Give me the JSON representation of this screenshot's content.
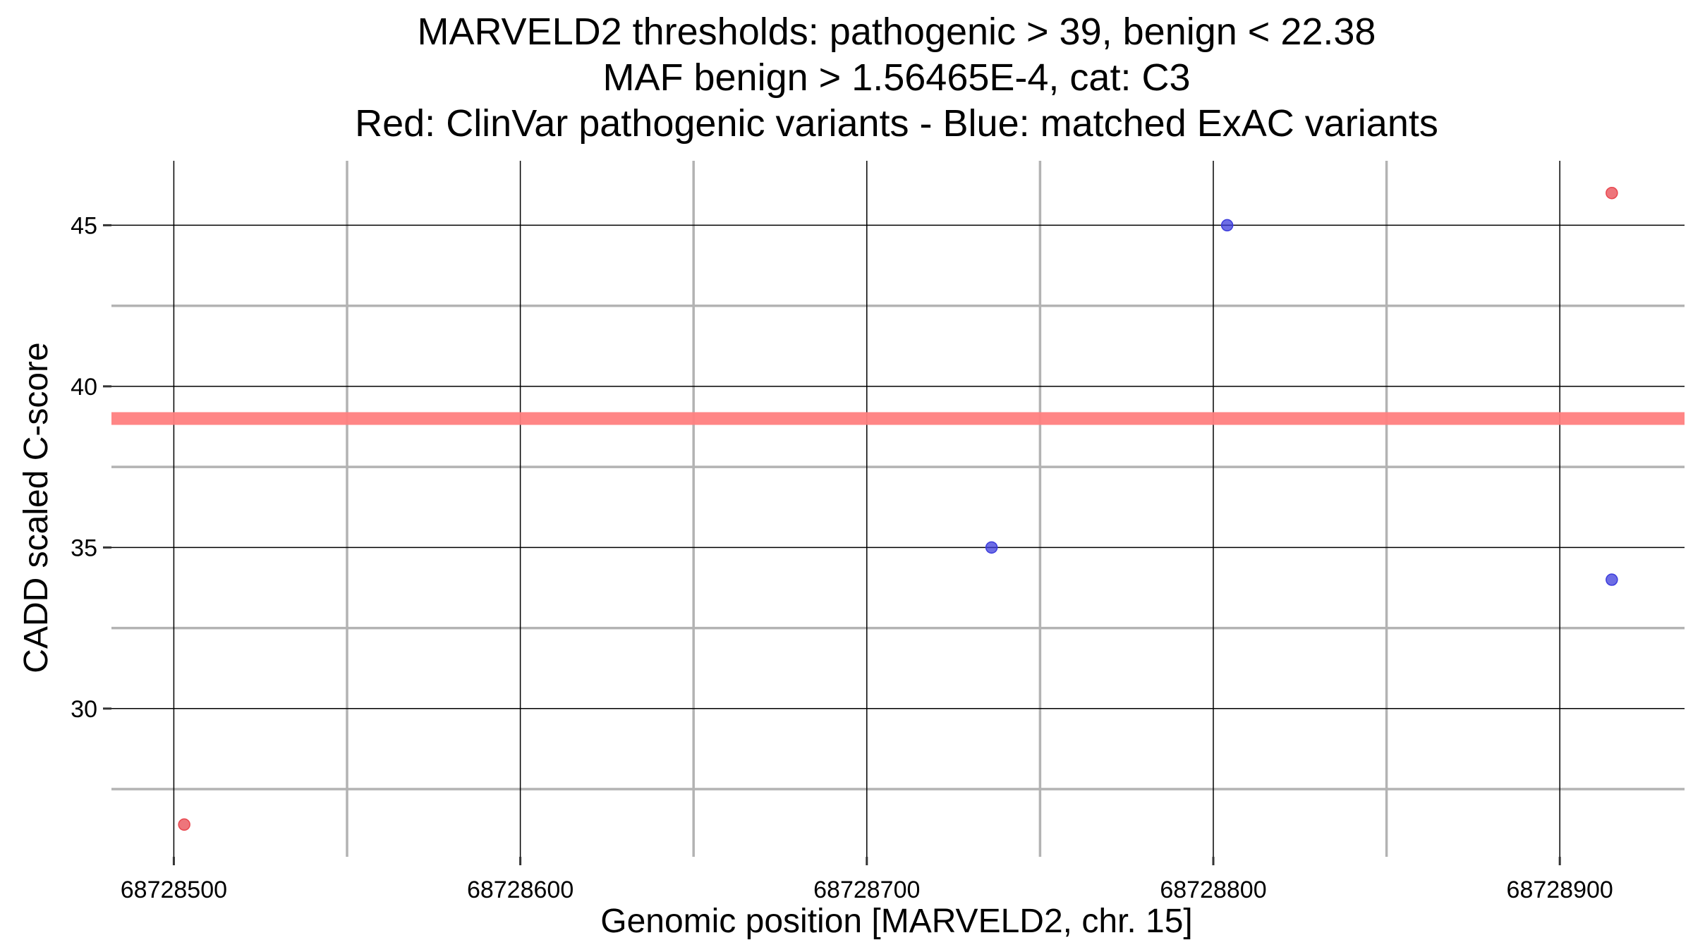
{
  "chart_data": {
    "type": "scatter",
    "title_lines": [
      "MARVELD2 thresholds: pathogenic > 39, benign < 22.38",
      "MAF benign > 1.56465E-4, cat: C3",
      "Red: ClinVar pathogenic variants - Blue: matched ExAC variants"
    ],
    "xlabel": "Genomic position [MARVELD2, chr. 15]",
    "ylabel": "CADD scaled C-score",
    "xlim": [
      68728482,
      68728936
    ],
    "ylim": [
      25.4,
      47.0
    ],
    "x_major_ticks": [
      68728500,
      68728600,
      68728700,
      68728800,
      68728900
    ],
    "x_major_tick_labels": [
      "68728500",
      "68728600",
      "68728700",
      "68728800",
      "68728900"
    ],
    "x_minor_ticks": [
      68728550,
      68728650,
      68728750,
      68728850
    ],
    "y_major_ticks": [
      30,
      35,
      40,
      45
    ],
    "y_major_tick_labels": [
      "30",
      "35",
      "40",
      "45"
    ],
    "y_minor_ticks": [
      27.5,
      32.5,
      37.5,
      42.5
    ],
    "threshold_line": {
      "y": 39,
      "color": "#ff7f7f"
    },
    "series": [
      {
        "color": "#e8474f",
        "points": [
          {
            "x": 68728503,
            "y": 26.4
          },
          {
            "x": 68728915,
            "y": 46
          }
        ]
      },
      {
        "color": "#3c3cdc",
        "points": [
          {
            "x": 68728736,
            "y": 35
          },
          {
            "x": 68728804,
            "y": 45
          },
          {
            "x": 68728915,
            "y": 34
          }
        ]
      }
    ],
    "grid": true,
    "legend": "none"
  }
}
